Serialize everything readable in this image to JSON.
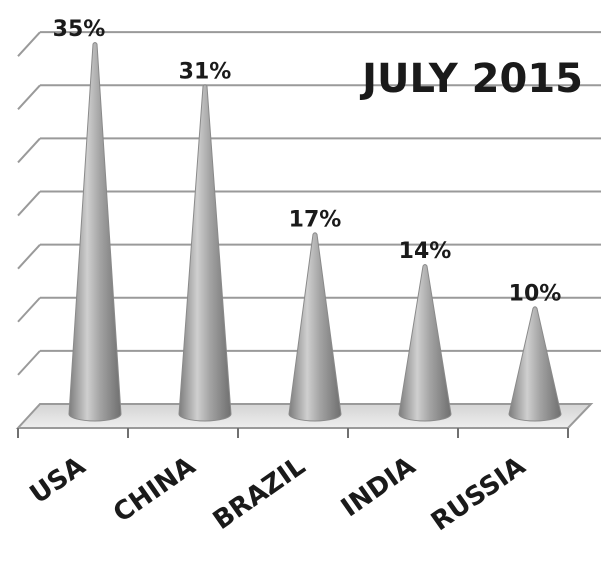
{
  "chart_data": {
    "type": "bar",
    "title": "JULY 2015",
    "categories": [
      "USA",
      "CHINA",
      "BRAZIL",
      "INDIA",
      "RUSSIA"
    ],
    "values": [
      35,
      31,
      17,
      14,
      10
    ],
    "value_labels": [
      "35%",
      "31%",
      "17%",
      "14%",
      "10%"
    ],
    "ylim": [
      0,
      35
    ],
    "grid": true,
    "shape": "cone",
    "colors": {
      "cone": "#a6a6a6",
      "grid": "#9a9a9a",
      "text": "#1a1a1a"
    }
  }
}
